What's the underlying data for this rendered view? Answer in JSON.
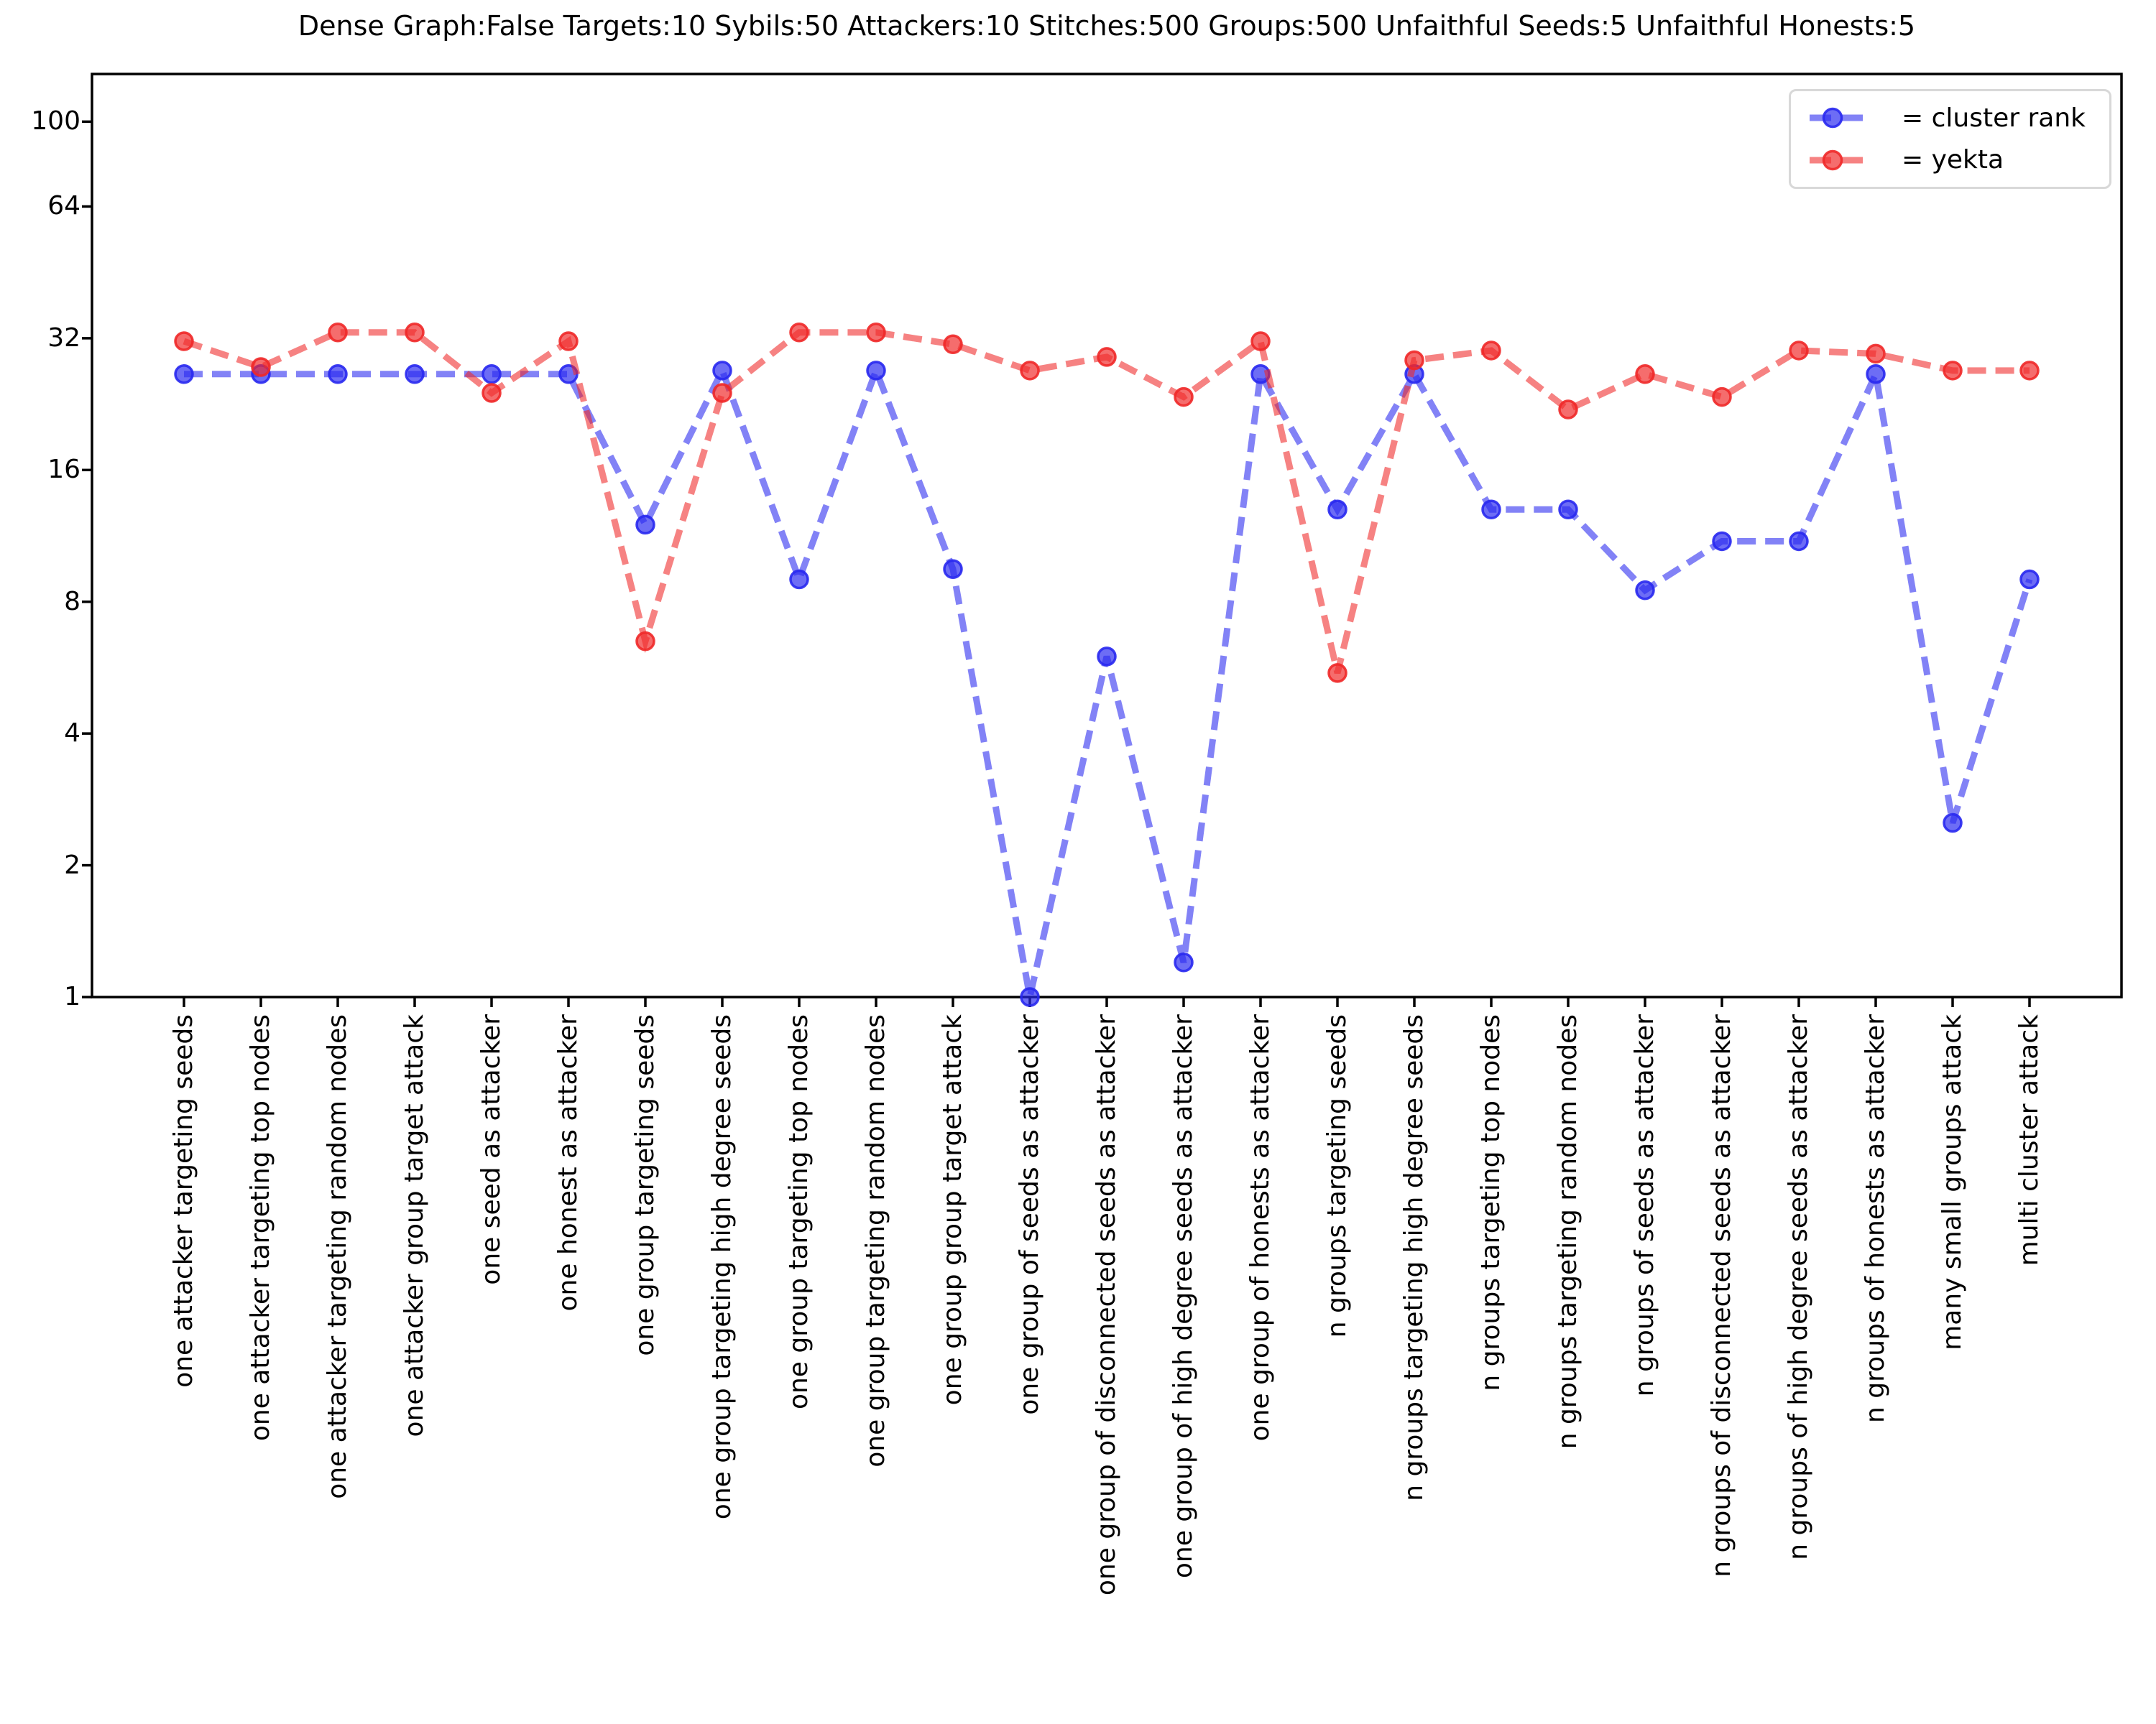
{
  "title": "Dense Graph:False Targets:10 Sybils:50 Attackers:10 Stitches:500 Groups:500 Unfaithful Seeds:5 Unfaithful Honests:5",
  "chart_data": {
    "type": "line",
    "x_categories": [
      "one attacker targeting seeds",
      "one attacker targeting top nodes",
      "one attacker targeting random nodes",
      "one attacker group target attack",
      "one seed as attacker",
      "one honest as attacker",
      "one group targeting seeds",
      "one group targeting high degree seeds",
      "one group targeting top nodes",
      "one group targeting random nodes",
      "one group group target attack",
      "one group of seeds as attacker",
      "one group of disconnected seeds as attacker",
      "one group of high degree seeds as attacker",
      "one group of honests as attacker",
      "n groups targeting seeds",
      "n groups targeting high degree seeds",
      "n groups targeting top nodes",
      "n groups targeting random nodes",
      "n groups of seeds as attacker",
      "n groups of disconnected seeds as attacker",
      "n groups of high degree seeds as attacker",
      "n groups of honests as attacker",
      "many small groups attack",
      "multi cluster attack"
    ],
    "series": [
      {
        "name": "cluster rank",
        "legend_label": "= cluster rank",
        "color": "#2828f0",
        "linestyle": "dashed",
        "marker": "circle",
        "values": [
          26.5,
          26.5,
          26.5,
          26.5,
          26.5,
          26.5,
          12,
          27,
          9,
          27,
          9.5,
          1.0,
          6,
          1.2,
          26.5,
          13,
          26.5,
          13,
          13,
          8.5,
          11,
          11,
          26.5,
          2.5,
          9
        ]
      },
      {
        "name": "yekta",
        "legend_label": "= yekta",
        "color": "#f02828",
        "linestyle": "dashed",
        "marker": "circle",
        "values": [
          31.5,
          27.5,
          33,
          33,
          24,
          31.5,
          6.5,
          24,
          33,
          33,
          31,
          27,
          29,
          23.5,
          31.5,
          5.5,
          28.5,
          30,
          22,
          26.5,
          23.5,
          30,
          29.5,
          27,
          27
        ]
      }
    ],
    "y_ticks": [
      "1",
      "2",
      "4",
      "8",
      "16",
      "32",
      "64",
      "100"
    ],
    "y_scale": "log2",
    "ylim": [
      1,
      128.5
    ],
    "grid": false,
    "legend_position": "upper right"
  }
}
